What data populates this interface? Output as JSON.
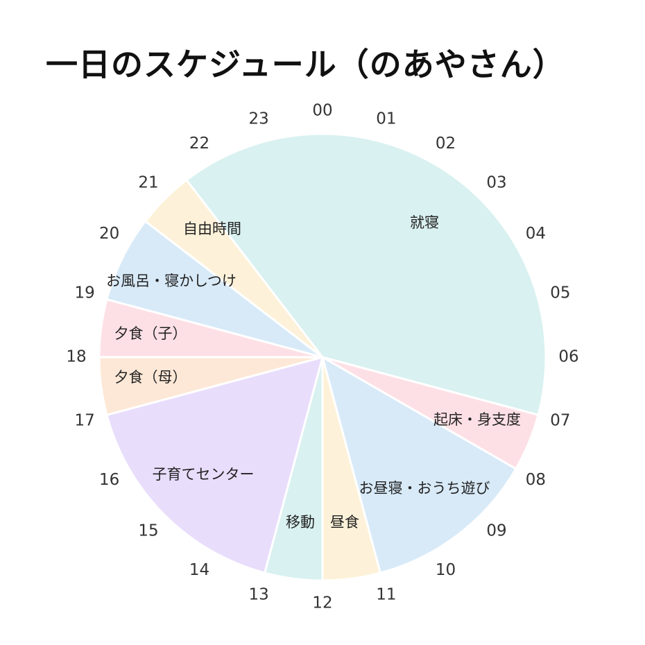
{
  "chart_data": {
    "type": "pie",
    "title": "一日のスケジュール（のあやさん）",
    "unit": "hour",
    "hour_labels": [
      "00",
      "01",
      "02",
      "03",
      "04",
      "05",
      "06",
      "07",
      "08",
      "09",
      "10",
      "11",
      "12",
      "13",
      "14",
      "15",
      "16",
      "17",
      "18",
      "19",
      "20",
      "21",
      "22",
      "23"
    ],
    "slices": [
      {
        "label": "就寝",
        "start": 21.5,
        "end": 31.0,
        "color": "#d9f1f0"
      },
      {
        "label": "起床・身支度",
        "start": 7.0,
        "end": 8.0,
        "color": "#fde0e6"
      },
      {
        "label": "お昼寝・おうち遊び",
        "start": 8.0,
        "end": 11.0,
        "color": "#d8eaf8"
      },
      {
        "label": "昼食",
        "start": 11.0,
        "end": 12.0,
        "color": "#fdf2d9"
      },
      {
        "label": "移動",
        "start": 12.0,
        "end": 13.0,
        "color": "#d9f1f0"
      },
      {
        "label": "子育てセンター",
        "start": 13.0,
        "end": 17.0,
        "color": "#e9ddfc"
      },
      {
        "label": "夕食（母）",
        "start": 17.0,
        "end": 18.0,
        "color": "#fde8d7"
      },
      {
        "label": "夕食（子）",
        "start": 18.0,
        "end": 19.0,
        "color": "#fde0e6"
      },
      {
        "label": "お風呂・寝かしつけ",
        "start": 19.0,
        "end": 20.5,
        "color": "#d8eaf8"
      },
      {
        "label": "自由時間",
        "start": 20.5,
        "end": 21.5,
        "color": "#fdf2d9"
      }
    ]
  }
}
